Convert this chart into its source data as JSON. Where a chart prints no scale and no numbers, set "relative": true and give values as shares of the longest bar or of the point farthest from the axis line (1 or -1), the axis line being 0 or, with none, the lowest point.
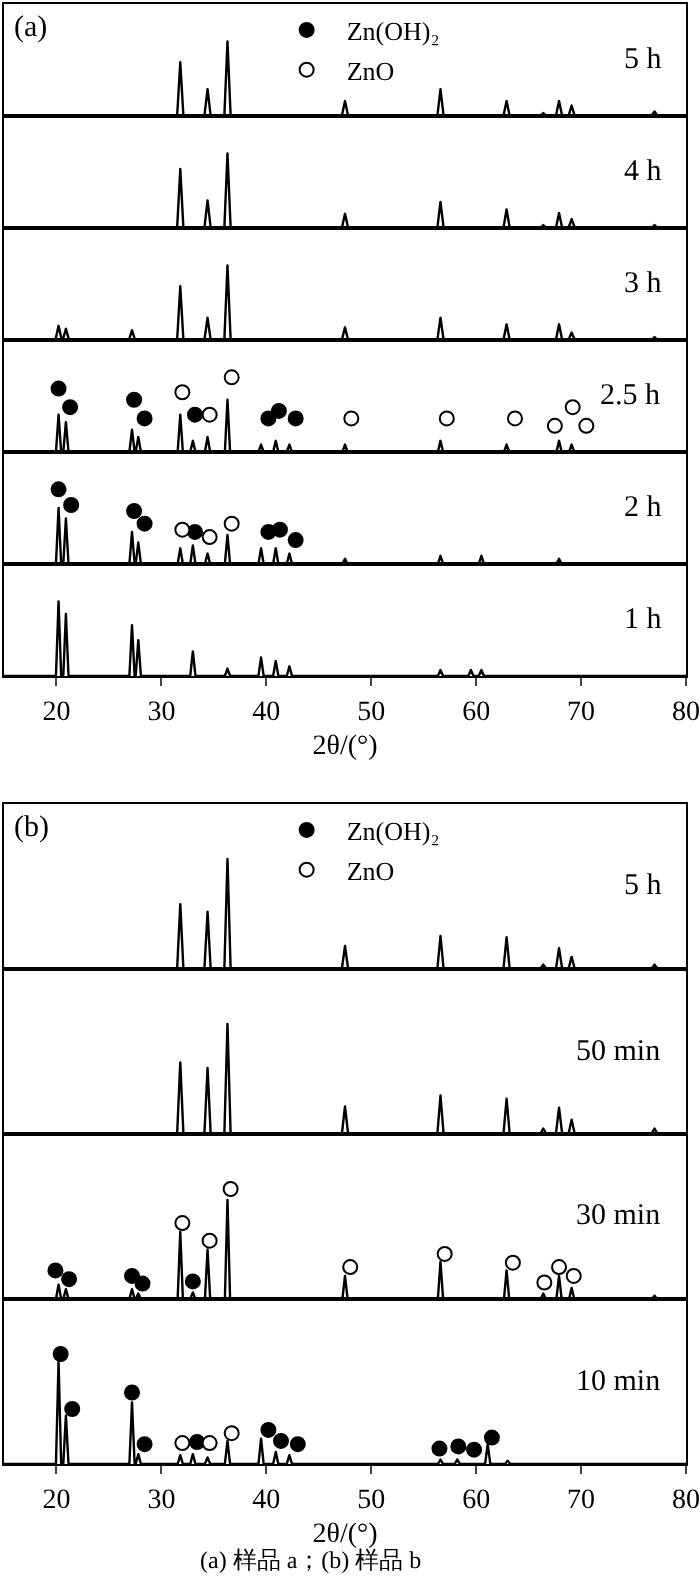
{
  "chart_data": [
    {
      "type": "line",
      "relative": true,
      "xlim": [
        15,
        80
      ],
      "xticks": [
        20,
        30,
        40,
        50,
        60,
        70,
        80
      ],
      "tick_labels": false,
      "annotations": [
        "5 h",
        "(a)"
      ],
      "series": [
        {
          "color": "#000000",
          "x": [
            15,
            31.5,
            31.8,
            32.1,
            34.1,
            34.4,
            34.7,
            36,
            36.3,
            36.6,
            47.2,
            47.5,
            47.8,
            56.3,
            56.6,
            56.9,
            62.6,
            62.9,
            63.2,
            66.1,
            66.4,
            66.7,
            67.6,
            67.9,
            68.2,
            68.8,
            69.1,
            69.4,
            76.7,
            77,
            77.3,
            80
          ],
          "values": [
            0,
            0,
            0.72,
            0,
            0,
            0.36,
            0,
            0,
            1,
            0,
            0,
            0.2,
            0,
            0,
            0.36,
            0,
            0,
            0.2,
            0,
            0,
            0.04,
            0,
            0,
            0.2,
            0,
            0,
            0.14,
            0,
            0,
            0.06,
            0,
            0
          ]
        }
      ]
    },
    {
      "type": "line",
      "relative": true,
      "xlim": [
        15,
        80
      ],
      "xticks": [
        20,
        30,
        40,
        50,
        60,
        70,
        80
      ],
      "tick_labels": false,
      "annotations": [
        "4 h"
      ],
      "series": [
        {
          "color": "#000000",
          "x": [
            15,
            31.5,
            31.8,
            32.1,
            34.1,
            34.4,
            34.7,
            36,
            36.3,
            36.6,
            47.2,
            47.5,
            47.8,
            56.3,
            56.6,
            56.9,
            62.6,
            62.9,
            63.2,
            66.1,
            66.4,
            66.7,
            67.6,
            67.9,
            68.2,
            68.8,
            69.1,
            69.4,
            76.7,
            77,
            77.3,
            80
          ],
          "values": [
            0,
            0,
            0.79,
            0,
            0,
            0.37,
            0,
            0,
            1,
            0,
            0,
            0.19,
            0,
            0,
            0.35,
            0,
            0,
            0.25,
            0,
            0,
            0.04,
            0,
            0,
            0.2,
            0,
            0,
            0.12,
            0,
            0,
            0.04,
            0,
            0
          ]
        }
      ]
    },
    {
      "type": "line",
      "relative": true,
      "xlim": [
        15,
        80
      ],
      "xticks": [
        20,
        30,
        40,
        50,
        60,
        70,
        80
      ],
      "tick_labels": false,
      "annotations": [
        "3 h"
      ],
      "series": [
        {
          "color": "#000000",
          "x": [
            15,
            19.9,
            20.2,
            20.5,
            20.6,
            20.9,
            21.2,
            26.9,
            27.2,
            27.5,
            31.5,
            31.8,
            32.1,
            34.1,
            34.4,
            34.7,
            36,
            36.3,
            36.6,
            47.2,
            47.5,
            47.8,
            56.3,
            56.6,
            56.9,
            62.6,
            62.9,
            63.2,
            67.6,
            67.9,
            68.2,
            68.8,
            69.1,
            69.4,
            76.7,
            77,
            77.3,
            80
          ],
          "values": [
            0,
            0,
            0.19,
            0,
            0,
            0.15,
            0,
            0,
            0.13,
            0,
            0,
            0.72,
            0,
            0,
            0.3,
            0,
            0,
            1,
            0,
            0,
            0.17,
            0,
            0,
            0.3,
            0,
            0,
            0.21,
            0,
            0,
            0.21,
            0,
            0,
            0.1,
            0,
            0,
            0.04,
            0,
            0
          ]
        }
      ]
    },
    {
      "type": "line",
      "relative": true,
      "xlim": [
        15,
        80
      ],
      "xticks": [
        20,
        30,
        40,
        50,
        60,
        70,
        80
      ],
      "tick_labels": false,
      "annotations": [
        "2.5 h"
      ],
      "legend": "top",
      "series": [
        {
          "color": "#000000",
          "x": [
            15,
            19.95,
            20.2,
            20.45,
            20.65,
            20.9,
            21.15,
            26.95,
            27.2,
            27.45,
            27.55,
            27.8,
            28.05,
            31.55,
            31.8,
            32.05,
            32.75,
            33,
            33.25,
            34.15,
            34.4,
            34.65,
            36.05,
            36.3,
            36.55,
            39.25,
            39.5,
            39.75,
            40.65,
            40.9,
            41.15,
            41.95,
            42.2,
            42.45,
            47.25,
            47.5,
            47.75,
            56.35,
            56.6,
            56.85,
            62.65,
            62.9,
            63.15,
            67.65,
            67.9,
            68.15,
            68.85,
            69.1,
            69.35,
            80
          ],
          "values": [
            0,
            0,
            0.5,
            0,
            0,
            0.4,
            0,
            0,
            0.3,
            0,
            0,
            0.2,
            0,
            0,
            0.5,
            0,
            0,
            0.15,
            0,
            0,
            0.2,
            0,
            0,
            0.7,
            0,
            0,
            0.1,
            0,
            0,
            0.15,
            0,
            0,
            0.1,
            0,
            0,
            0.1,
            0,
            0,
            0.15,
            0,
            0,
            0.1,
            0,
            0,
            0.15,
            0,
            0,
            0.1,
            0,
            0
          ]
        },
        {
          "type": "scatter",
          "marker": "circle",
          "name": "Zn(OH)₂",
          "color": "#000000",
          "x": [
            20.2,
            21.3,
            27.4,
            28.4,
            33.2,
            40.2,
            41.2,
            42.8
          ],
          "values": [
            0.85,
            0.6,
            0.7,
            0.45,
            0.5,
            0.45,
            0.55,
            0.45
          ]
        },
        {
          "type": "scatter",
          "marker": "circle",
          "name": "ZnO",
          "color": "#ffffff",
          "x": [
            32.0,
            34.6,
            36.7,
            48.1,
            57.2,
            63.7,
            67.5,
            69.2,
            70.5
          ],
          "values": [
            0.8,
            0.5,
            1,
            0.45,
            0.45,
            0.45,
            0.35,
            0.6,
            0.35
          ]
        }
      ]
    },
    {
      "type": "line",
      "relative": true,
      "xlim": [
        15,
        80
      ],
      "xticks": [
        20,
        30,
        40,
        50,
        60,
        70,
        80
      ],
      "tick_labels": false,
      "annotations": [
        "2 h"
      ],
      "series": [
        {
          "color": "#000000",
          "x": [
            15,
            19.95,
            20.2,
            20.45,
            20.65,
            20.9,
            21.15,
            26.95,
            27.2,
            27.45,
            27.55,
            27.8,
            28.05,
            31.55,
            31.8,
            32.05,
            32.75,
            33,
            33.25,
            34.15,
            34.4,
            34.65,
            36.05,
            36.3,
            36.55,
            39.25,
            39.5,
            39.75,
            40.65,
            40.9,
            41.15,
            41.95,
            42.2,
            42.45,
            47.25,
            47.5,
            47.75,
            56.35,
            56.6,
            56.85,
            60.25,
            60.5,
            60.75,
            67.65,
            67.9,
            68.15,
            80
          ],
          "values": [
            0,
            0,
            0.75,
            0,
            0,
            0.61,
            0,
            0,
            0.43,
            0,
            0,
            0.29,
            0,
            0,
            0.21,
            0,
            0,
            0.25,
            0,
            0,
            0.14,
            0,
            0,
            0.39,
            0,
            0,
            0.21,
            0,
            0,
            0.21,
            0,
            0,
            0.14,
            0,
            0,
            0.07,
            0,
            0,
            0.11,
            0,
            0,
            0.11,
            0,
            0,
            0.07,
            0,
            0
          ]
        },
        {
          "type": "scatter",
          "marker": "circle",
          "color": "#000000",
          "x": [
            20.2,
            21.4,
            27.4,
            28.4,
            33.2,
            40.2,
            41.3,
            42.8
          ],
          "values": [
            1,
            0.79,
            0.71,
            0.54,
            0.43,
            0.43,
            0.46,
            0.32
          ]
        },
        {
          "type": "scatter",
          "marker": "circle",
          "color": "#ffffff",
          "x": [
            32.0,
            34.6,
            36.7
          ],
          "values": [
            0.46,
            0.36,
            0.54
          ]
        }
      ]
    },
    {
      "type": "line",
      "relative": true,
      "xlim": [
        15,
        80
      ],
      "xticks": [
        20,
        30,
        40,
        50,
        60,
        70,
        80
      ],
      "tick_labels": "x",
      "xlabel": "2θ/(°)",
      "annotations": [
        "1 h"
      ],
      "series": [
        {
          "color": "#000000",
          "x": [
            15,
            19.95,
            20.2,
            20.45,
            20.65,
            20.9,
            21.15,
            26.95,
            27.2,
            27.45,
            27.55,
            27.8,
            28.05,
            32.75,
            33,
            33.25,
            36.05,
            36.3,
            36.55,
            39.25,
            39.5,
            39.75,
            40.65,
            40.9,
            41.15,
            41.95,
            42.2,
            42.45,
            56.35,
            56.6,
            56.85,
            59.25,
            59.5,
            59.75,
            60.25,
            60.5,
            60.75,
            80
          ],
          "values": [
            0,
            0,
            1,
            0,
            0,
            0.83,
            0,
            0,
            0.68,
            0,
            0,
            0.48,
            0,
            0,
            0.33,
            0,
            0,
            0.1,
            0,
            0,
            0.25,
            0,
            0,
            0.2,
            0,
            0,
            0.13,
            0,
            0,
            0.08,
            0,
            0,
            0.08,
            0,
            0,
            0.08,
            0,
            0
          ]
        }
      ]
    },
    {
      "type": "line",
      "relative": true,
      "xlim": [
        15,
        80
      ],
      "xticks": [
        20,
        30,
        40,
        50,
        60,
        70,
        80
      ],
      "tick_labels": false,
      "annotations": [
        "5 h",
        "(b)"
      ],
      "series": [
        {
          "color": "#000000",
          "x": [
            15,
            31.5,
            31.8,
            32.1,
            34.1,
            34.4,
            34.7,
            36,
            36.3,
            36.6,
            47.2,
            47.5,
            47.8,
            56.3,
            56.6,
            56.9,
            62.6,
            62.9,
            63.2,
            66.1,
            66.4,
            66.7,
            67.6,
            67.9,
            68.2,
            68.8,
            69.1,
            69.4,
            76.7,
            77,
            77.3,
            80
          ],
          "values": [
            0,
            0,
            0.59,
            0,
            0,
            0.52,
            0,
            0,
            1,
            0,
            0,
            0.21,
            0,
            0,
            0.3,
            0,
            0,
            0.29,
            0,
            0,
            0.04,
            0,
            0,
            0.19,
            0,
            0,
            0.11,
            0,
            0,
            0.04,
            0,
            0
          ]
        }
      ]
    },
    {
      "type": "line",
      "relative": true,
      "xlim": [
        15,
        80
      ],
      "xticks": [
        20,
        30,
        40,
        50,
        60,
        70,
        80
      ],
      "tick_labels": false,
      "annotations": [
        "50 min"
      ],
      "series": [
        {
          "color": "#000000",
          "x": [
            15,
            31.5,
            31.8,
            32.1,
            34.1,
            34.4,
            34.7,
            36,
            36.3,
            36.6,
            47.2,
            47.5,
            47.8,
            56.3,
            56.6,
            56.9,
            62.6,
            62.9,
            63.2,
            66.1,
            66.4,
            66.7,
            67.6,
            67.9,
            68.2,
            68.8,
            69.1,
            69.4,
            76.7,
            77,
            77.3,
            80
          ],
          "values": [
            0,
            0,
            0.65,
            0,
            0,
            0.6,
            0,
            0,
            1,
            0,
            0,
            0.25,
            0,
            0,
            0.35,
            0,
            0,
            0.32,
            0,
            0,
            0.05,
            0,
            0,
            0.24,
            0,
            0,
            0.13,
            0,
            0,
            0.05,
            0,
            0
          ]
        }
      ]
    },
    {
      "type": "line",
      "relative": true,
      "xlim": [
        15,
        80
      ],
      "xticks": [
        20,
        30,
        40,
        50,
        60,
        70,
        80
      ],
      "tick_labels": false,
      "annotations": [
        "30 min"
      ],
      "legend": "top",
      "series": [
        {
          "color": "#000000",
          "x": [
            15,
            19.95,
            20.2,
            20.45,
            20.65,
            20.9,
            21.15,
            26.95,
            27.2,
            27.45,
            27.55,
            27.8,
            28.05,
            31.55,
            31.8,
            32.05,
            32.75,
            33,
            33.25,
            34.15,
            34.4,
            34.65,
            36.05,
            36.3,
            36.55,
            47.25,
            47.5,
            47.75,
            56.35,
            56.6,
            56.85,
            62.65,
            62.9,
            63.15,
            66.15,
            66.4,
            66.65,
            67.65,
            67.9,
            68.15,
            68.85,
            69.1,
            69.35,
            76.75,
            77,
            77.25,
            80
          ],
          "values": [
            0,
            0,
            0.13,
            0,
            0,
            0.09,
            0,
            0,
            0.09,
            0,
            0,
            0.05,
            0,
            0,
            0.61,
            0,
            0,
            0.06,
            0,
            0,
            0.45,
            0,
            0,
            0.9,
            0,
            0,
            0.21,
            0,
            0,
            0.34,
            0,
            0,
            0.26,
            0,
            0,
            0.05,
            0,
            0,
            0.21,
            0,
            0,
            0.1,
            0,
            0,
            0.03,
            0,
            0
          ]
        },
        {
          "type": "scatter",
          "marker": "circle",
          "name": "Zn(OH)₂",
          "color": "#000000",
          "x": [
            19.9,
            21.2,
            27.2,
            28.2,
            33.0
          ],
          "values": [
            0.26,
            0.18,
            0.21,
            0.14,
            0.16
          ]
        },
        {
          "type": "scatter",
          "marker": "circle",
          "name": "ZnO",
          "color": "#ffffff",
          "x": [
            32.0,
            34.6,
            36.6,
            48.0,
            57.0,
            63.5,
            66.5,
            67.9,
            69.3
          ],
          "values": [
            0.69,
            0.53,
            1,
            0.29,
            0.41,
            0.33,
            0.15,
            0.29,
            0.21
          ]
        }
      ]
    },
    {
      "type": "line",
      "relative": true,
      "xlim": [
        15,
        80
      ],
      "xticks": [
        20,
        30,
        40,
        50,
        60,
        70,
        80
      ],
      "tick_labels": "x",
      "xlabel": "2θ/(°)",
      "annotations": [
        "10 min",
        "(a) 样品 a；(b) 样品 b"
      ],
      "series": [
        {
          "color": "#000000",
          "x": [
            15,
            19.95,
            20.2,
            20.45,
            20.65,
            20.9,
            21.15,
            26.95,
            27.2,
            27.45,
            27.55,
            27.8,
            28.05,
            31.55,
            31.8,
            32.05,
            32.75,
            33,
            33.25,
            34.15,
            34.4,
            34.65,
            36.05,
            36.3,
            36.55,
            39.25,
            39.5,
            39.75,
            40.65,
            40.9,
            41.15,
            41.95,
            42.2,
            42.45,
            56.35,
            56.6,
            56.85,
            57.95,
            58.2,
            58.45,
            60.85,
            61.1,
            61.35,
            62.75,
            63,
            63.25,
            80
          ],
          "values": [
            0,
            0,
            0.93,
            0,
            0,
            0.44,
            0,
            0,
            0.56,
            0,
            0,
            0.09,
            0,
            0,
            0.08,
            0,
            0,
            0.09,
            0,
            0,
            0.06,
            0,
            0,
            0.21,
            0,
            0,
            0.23,
            0,
            0,
            0.11,
            0,
            0,
            0.08,
            0,
            0,
            0.04,
            0,
            0,
            0.04,
            0,
            0,
            0.18,
            0,
            0,
            0.03,
            0,
            0
          ]
        },
        {
          "type": "scatter",
          "marker": "circle",
          "color": "#000000",
          "x": [
            20.4,
            21.5,
            27.2,
            28.4,
            33.4,
            40.2,
            41.4,
            43.0,
            56.5,
            58.3,
            59.8,
            61.5
          ],
          "values": [
            1,
            0.5,
            0.65,
            0.18,
            0.2,
            0.31,
            0.21,
            0.18,
            0.14,
            0.16,
            0.13,
            0.24
          ]
        },
        {
          "type": "scatter",
          "marker": "circle",
          "color": "#ffffff",
          "x": [
            32.0,
            34.6,
            36.7
          ],
          "values": [
            0.19,
            0.19,
            0.28
          ]
        }
      ]
    }
  ]
}
